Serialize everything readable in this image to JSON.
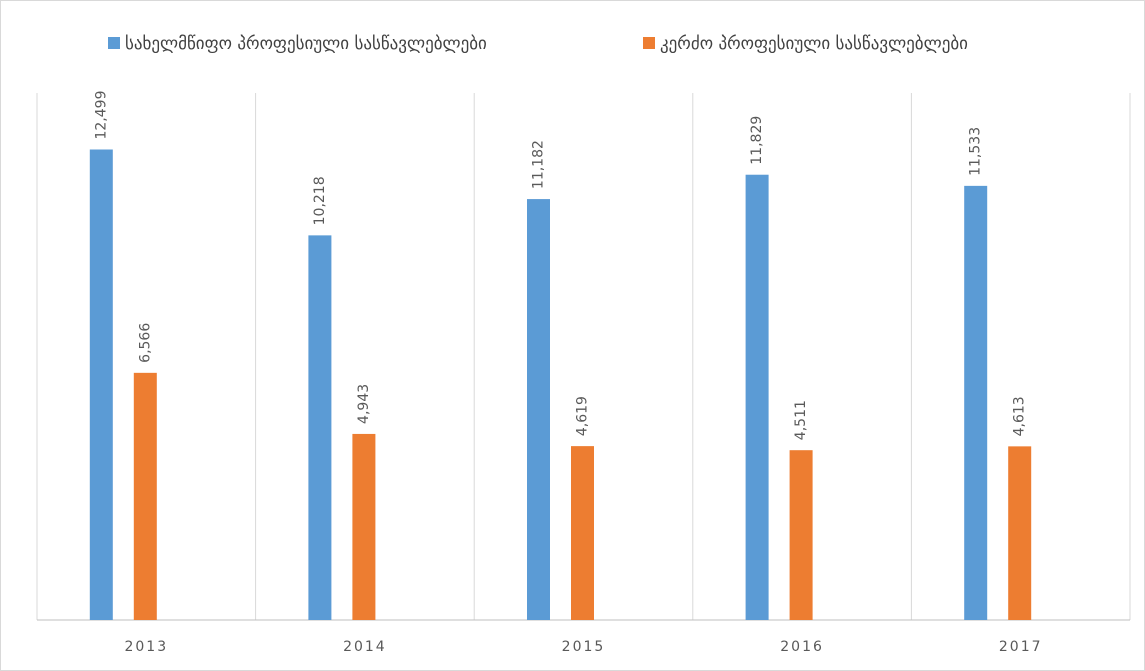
{
  "chart_data": {
    "type": "bar",
    "categories": [
      "2013",
      "2014",
      "2015",
      "2016",
      "2017"
    ],
    "series": [
      {
        "name": "სახელმწიფო პროფესიული სასწავლებლები",
        "color": "#5b9bd5",
        "values": [
          12499,
          10218,
          11182,
          11829,
          11533
        ],
        "value_labels": [
          "12,499",
          "10,218",
          "11,182",
          "11,829",
          "11,533"
        ]
      },
      {
        "name": "კერძო პროფესიული სასწავლებლები",
        "color": "#ed7d31",
        "values": [
          6566,
          4943,
          4619,
          4511,
          4613
        ],
        "value_labels": [
          "6,566",
          "4,943",
          "4,619",
          "4,511",
          "4,613"
        ]
      }
    ],
    "ylim": [
      0,
      14000
    ],
    "legend": "top"
  }
}
